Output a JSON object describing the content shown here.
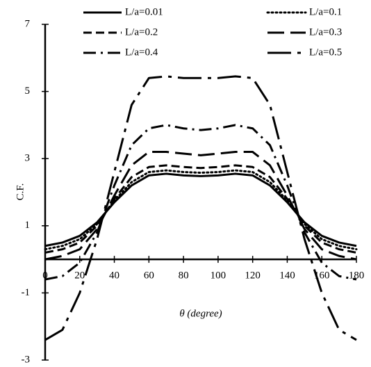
{
  "chart_data": {
    "type": "line",
    "xlabel": "θ (degree)",
    "ylabel": "C.F.",
    "x": [
      0,
      10,
      20,
      30,
      40,
      50,
      60,
      70,
      80,
      90,
      100,
      110,
      120,
      130,
      140,
      150,
      160,
      170,
      180
    ],
    "series": [
      {
        "name": "L/a=0.01",
        "color": "#000000",
        "values": [
          0.4,
          0.5,
          0.7,
          1.1,
          1.7,
          2.2,
          2.5,
          2.55,
          2.5,
          2.48,
          2.5,
          2.55,
          2.5,
          2.2,
          1.7,
          1.1,
          0.7,
          0.5,
          0.4
        ]
      },
      {
        "name": "L/a=0.1",
        "color": "#000000",
        "values": [
          0.3,
          0.4,
          0.6,
          1.05,
          1.75,
          2.3,
          2.6,
          2.65,
          2.6,
          2.58,
          2.6,
          2.65,
          2.6,
          2.3,
          1.75,
          1.05,
          0.6,
          0.4,
          0.3
        ]
      },
      {
        "name": "L/a=0.2",
        "color": "#000000",
        "values": [
          0.2,
          0.3,
          0.5,
          1.0,
          1.8,
          2.45,
          2.75,
          2.8,
          2.75,
          2.72,
          2.75,
          2.8,
          2.75,
          2.45,
          1.8,
          1.0,
          0.5,
          0.3,
          0.2
        ]
      },
      {
        "name": "L/a=0.3",
        "color": "#000000",
        "values": [
          0.0,
          0.1,
          0.3,
          0.9,
          1.9,
          2.8,
          3.2,
          3.2,
          3.15,
          3.1,
          3.15,
          3.2,
          3.2,
          2.8,
          1.9,
          0.9,
          0.3,
          0.1,
          0.0
        ]
      },
      {
        "name": "L/a=0.4",
        "color": "#000000",
        "values": [
          -0.6,
          -0.5,
          -0.1,
          0.8,
          2.2,
          3.4,
          3.9,
          4.0,
          3.9,
          3.85,
          3.9,
          4.0,
          3.9,
          3.4,
          2.2,
          0.8,
          -0.1,
          -0.5,
          -0.6
        ]
      },
      {
        "name": "L/a=0.5",
        "color": "#000000",
        "values": [
          -2.4,
          -2.1,
          -1.0,
          0.6,
          2.6,
          4.6,
          5.4,
          5.45,
          5.4,
          5.4,
          5.4,
          5.45,
          5.4,
          4.6,
          2.6,
          0.6,
          -1.0,
          -2.1,
          -2.4
        ]
      }
    ],
    "xlim": [
      0,
      180
    ],
    "xticks": [
      0,
      20,
      40,
      60,
      80,
      100,
      120,
      140,
      160,
      180
    ],
    "ylim": [
      -3,
      7
    ],
    "yticks": [
      -3,
      -1,
      1,
      3,
      5,
      7
    ]
  }
}
